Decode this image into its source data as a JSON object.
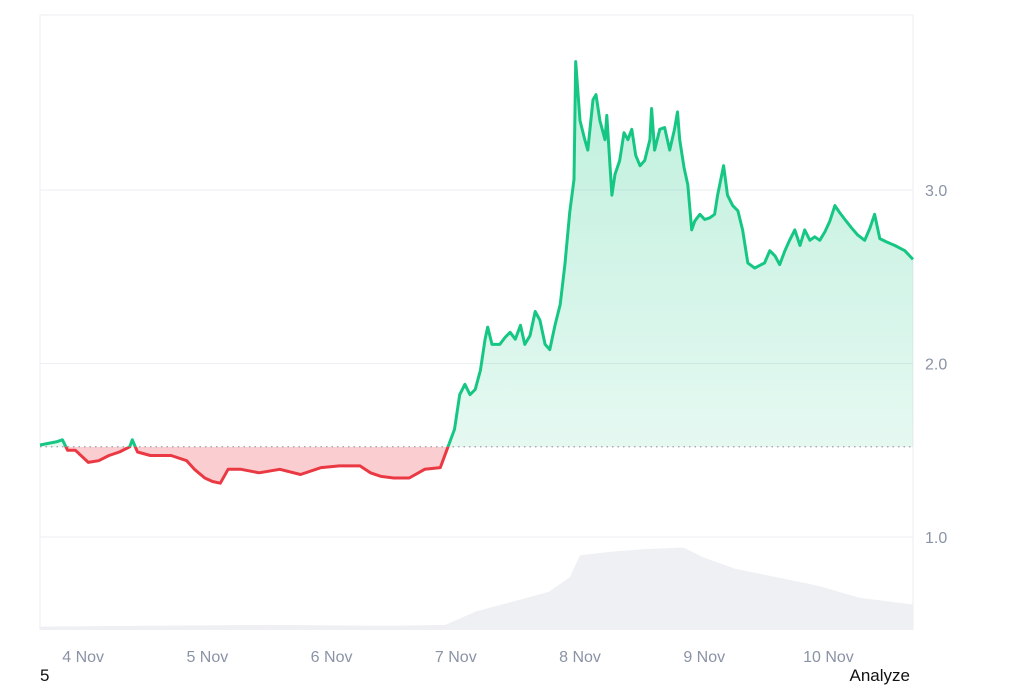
{
  "chart_data": {
    "type": "area",
    "xlim": [
      "3 Nov 15:40",
      "10 Nov 16:20"
    ],
    "ylim": [
      0.5,
      3.9
    ],
    "baseline": 1.52,
    "grid": true,
    "y_ticks": [
      "1.0",
      "2.0",
      "3.0"
    ],
    "y_tick_values": [
      1.0,
      2.0,
      3.0
    ],
    "x_ticks": [
      "4 Nov",
      "5 Nov",
      "6 Nov",
      "7 Nov",
      "8 Nov",
      "9 Nov",
      "10 Nov"
    ],
    "colors": {
      "up": "#16c784",
      "down": "#ea3943",
      "volume": "#eef0f3",
      "grid": "#eceef1",
      "tick": "#8a93a6"
    },
    "price": [
      [
        "3 Nov 15:40",
        1.53
      ],
      [
        "3 Nov 19:00",
        1.55
      ],
      [
        "3 Nov 20:00",
        1.56
      ],
      [
        "3 Nov 21:00",
        1.5
      ],
      [
        "3 Nov 22:30",
        1.5
      ],
      [
        "4 Nov 01:00",
        1.43
      ],
      [
        "4 Nov 03:00",
        1.44
      ],
      [
        "4 Nov 05:00",
        1.47
      ],
      [
        "4 Nov 07:00",
        1.49
      ],
      [
        "4 Nov 09:00",
        1.52
      ],
      [
        "4 Nov 09:30",
        1.56
      ],
      [
        "4 Nov 10:30",
        1.49
      ],
      [
        "4 Nov 13:00",
        1.47
      ],
      [
        "4 Nov 17:00",
        1.47
      ],
      [
        "4 Nov 20:00",
        1.44
      ],
      [
        "4 Nov 21:30",
        1.39
      ],
      [
        "4 Nov 23:30",
        1.34
      ],
      [
        "5 Nov 01:00",
        1.32
      ],
      [
        "5 Nov 02:30",
        1.31
      ],
      [
        "5 Nov 04:00",
        1.39
      ],
      [
        "5 Nov 06:30",
        1.39
      ],
      [
        "5 Nov 10:00",
        1.37
      ],
      [
        "5 Nov 14:00",
        1.39
      ],
      [
        "5 Nov 18:00",
        1.36
      ],
      [
        "5 Nov 22:00",
        1.4
      ],
      [
        "6 Nov 01:30",
        1.41
      ],
      [
        "6 Nov 05:30",
        1.41
      ],
      [
        "6 Nov 07:30",
        1.37
      ],
      [
        "6 Nov 09:30",
        1.35
      ],
      [
        "6 Nov 12:00",
        1.34
      ],
      [
        "6 Nov 15:00",
        1.34
      ],
      [
        "6 Nov 18:00",
        1.39
      ],
      [
        "6 Nov 21:00",
        1.4
      ],
      [
        "6 Nov 22:15",
        1.5
      ],
      [
        "6 Nov 23:45",
        1.62
      ],
      [
        "7 Nov 00:45",
        1.82
      ],
      [
        "7 Nov 01:45",
        1.88
      ],
      [
        "7 Nov 02:45",
        1.82
      ],
      [
        "7 Nov 03:45",
        1.85
      ],
      [
        "7 Nov 04:45",
        1.96
      ],
      [
        "7 Nov 05:40",
        2.14
      ],
      [
        "7 Nov 06:10",
        2.21
      ],
      [
        "7 Nov 07:00",
        2.11
      ],
      [
        "7 Nov 08:30",
        2.11
      ],
      [
        "7 Nov 09:30",
        2.15
      ],
      [
        "7 Nov 10:30",
        2.18
      ],
      [
        "7 Nov 11:30",
        2.14
      ],
      [
        "7 Nov 12:30",
        2.22
      ],
      [
        "7 Nov 13:20",
        2.11
      ],
      [
        "7 Nov 14:20",
        2.16
      ],
      [
        "7 Nov 15:20",
        2.3
      ],
      [
        "7 Nov 16:15",
        2.25
      ],
      [
        "7 Nov 17:15",
        2.11
      ],
      [
        "7 Nov 18:10",
        2.08
      ],
      [
        "7 Nov 19:10",
        2.22
      ],
      [
        "7 Nov 20:10",
        2.34
      ],
      [
        "7 Nov 21:05",
        2.57
      ],
      [
        "7 Nov 22:00",
        2.87
      ],
      [
        "7 Nov 22:50",
        3.06
      ],
      [
        "7 Nov 23:10",
        3.74
      ],
      [
        "8 Nov 00:00",
        3.4
      ],
      [
        "8 Nov 00:55",
        3.29
      ],
      [
        "8 Nov 01:30",
        3.23
      ],
      [
        "8 Nov 02:30",
        3.52
      ],
      [
        "8 Nov 03:05",
        3.55
      ],
      [
        "8 Nov 03:50",
        3.4
      ],
      [
        "8 Nov 04:50",
        3.29
      ],
      [
        "8 Nov 05:10",
        3.43
      ],
      [
        "8 Nov 06:10",
        2.97
      ],
      [
        "8 Nov 06:45",
        3.09
      ],
      [
        "8 Nov 07:40",
        3.17
      ],
      [
        "8 Nov 08:30",
        3.33
      ],
      [
        "8 Nov 09:15",
        3.29
      ],
      [
        "8 Nov 10:00",
        3.35
      ],
      [
        "8 Nov 10:45",
        3.2
      ],
      [
        "8 Nov 11:35",
        3.14
      ],
      [
        "8 Nov 12:30",
        3.17
      ],
      [
        "8 Nov 13:30",
        3.29
      ],
      [
        "8 Nov 13:50",
        3.47
      ],
      [
        "8 Nov 14:25",
        3.23
      ],
      [
        "8 Nov 15:25",
        3.35
      ],
      [
        "8 Nov 16:20",
        3.36
      ],
      [
        "8 Nov 17:20",
        3.23
      ],
      [
        "8 Nov 18:15",
        3.35
      ],
      [
        "8 Nov 18:50",
        3.45
      ],
      [
        "8 Nov 19:15",
        3.29
      ],
      [
        "8 Nov 20:05",
        3.13
      ],
      [
        "8 Nov 20:50",
        3.03
      ],
      [
        "8 Nov 21:35",
        2.77
      ],
      [
        "8 Nov 22:10",
        2.82
      ],
      [
        "8 Nov 23:10",
        2.86
      ],
      [
        "9 Nov 00:05",
        2.83
      ],
      [
        "9 Nov 01:05",
        2.84
      ],
      [
        "9 Nov 02:00",
        2.86
      ],
      [
        "9 Nov 02:35",
        2.97
      ],
      [
        "9 Nov 03:45",
        3.14
      ],
      [
        "9 Nov 04:30",
        2.97
      ],
      [
        "9 Nov 05:30",
        2.91
      ],
      [
        "9 Nov 06:30",
        2.88
      ],
      [
        "9 Nov 07:25",
        2.77
      ],
      [
        "9 Nov 08:25",
        2.58
      ],
      [
        "9 Nov 09:45",
        2.55
      ],
      [
        "9 Nov 11:40",
        2.58
      ],
      [
        "9 Nov 12:40",
        2.65
      ],
      [
        "9 Nov 13:40",
        2.62
      ],
      [
        "9 Nov 14:35",
        2.57
      ],
      [
        "9 Nov 15:35",
        2.65
      ],
      [
        "9 Nov 16:30",
        2.71
      ],
      [
        "9 Nov 17:30",
        2.77
      ],
      [
        "9 Nov 18:30",
        2.68
      ],
      [
        "9 Nov 19:25",
        2.77
      ],
      [
        "9 Nov 20:25",
        2.71
      ],
      [
        "9 Nov 21:20",
        2.73
      ],
      [
        "9 Nov 22:20",
        2.71
      ],
      [
        "9 Nov 23:20",
        2.76
      ],
      [
        "10 Nov 00:15",
        2.82
      ],
      [
        "10 Nov 01:15",
        2.91
      ],
      [
        "10 Nov 02:10",
        2.87
      ],
      [
        "10 Nov 03:10",
        2.83
      ],
      [
        "10 Nov 04:30",
        2.78
      ],
      [
        "10 Nov 05:40",
        2.74
      ],
      [
        "10 Nov 07:00",
        2.71
      ],
      [
        "10 Nov 08:00",
        2.78
      ],
      [
        "10 Nov 08:55",
        2.86
      ],
      [
        "10 Nov 09:55",
        2.72
      ],
      [
        "10 Nov 11:15",
        2.7
      ],
      [
        "10 Nov 12:50",
        2.68
      ],
      [
        "10 Nov 14:45",
        2.65
      ],
      [
        "10 Nov 16:20",
        2.6
      ]
    ],
    "volume_relative": [
      [
        "3 Nov 15:40",
        0.04
      ],
      [
        "4 Nov 12:00",
        0.05
      ],
      [
        "5 Nov 12:00",
        0.06
      ],
      [
        "6 Nov 12:00",
        0.05
      ],
      [
        "6 Nov 22:00",
        0.06
      ],
      [
        "7 Nov 04:00",
        0.22
      ],
      [
        "7 Nov 12:00",
        0.35
      ],
      [
        "7 Nov 18:00",
        0.45
      ],
      [
        "7 Nov 22:00",
        0.62
      ],
      [
        "8 Nov 00:00",
        0.88
      ],
      [
        "8 Nov 06:00",
        0.92
      ],
      [
        "8 Nov 12:00",
        0.95
      ],
      [
        "8 Nov 20:00",
        0.97
      ],
      [
        "9 Nov 00:00",
        0.85
      ],
      [
        "9 Nov 06:00",
        0.72
      ],
      [
        "9 Nov 14:00",
        0.62
      ],
      [
        "9 Nov 22:00",
        0.52
      ],
      [
        "10 Nov 06:00",
        0.38
      ],
      [
        "10 Nov 16:20",
        0.3
      ]
    ]
  },
  "footer": {
    "left": "5",
    "right": "Analyze"
  }
}
